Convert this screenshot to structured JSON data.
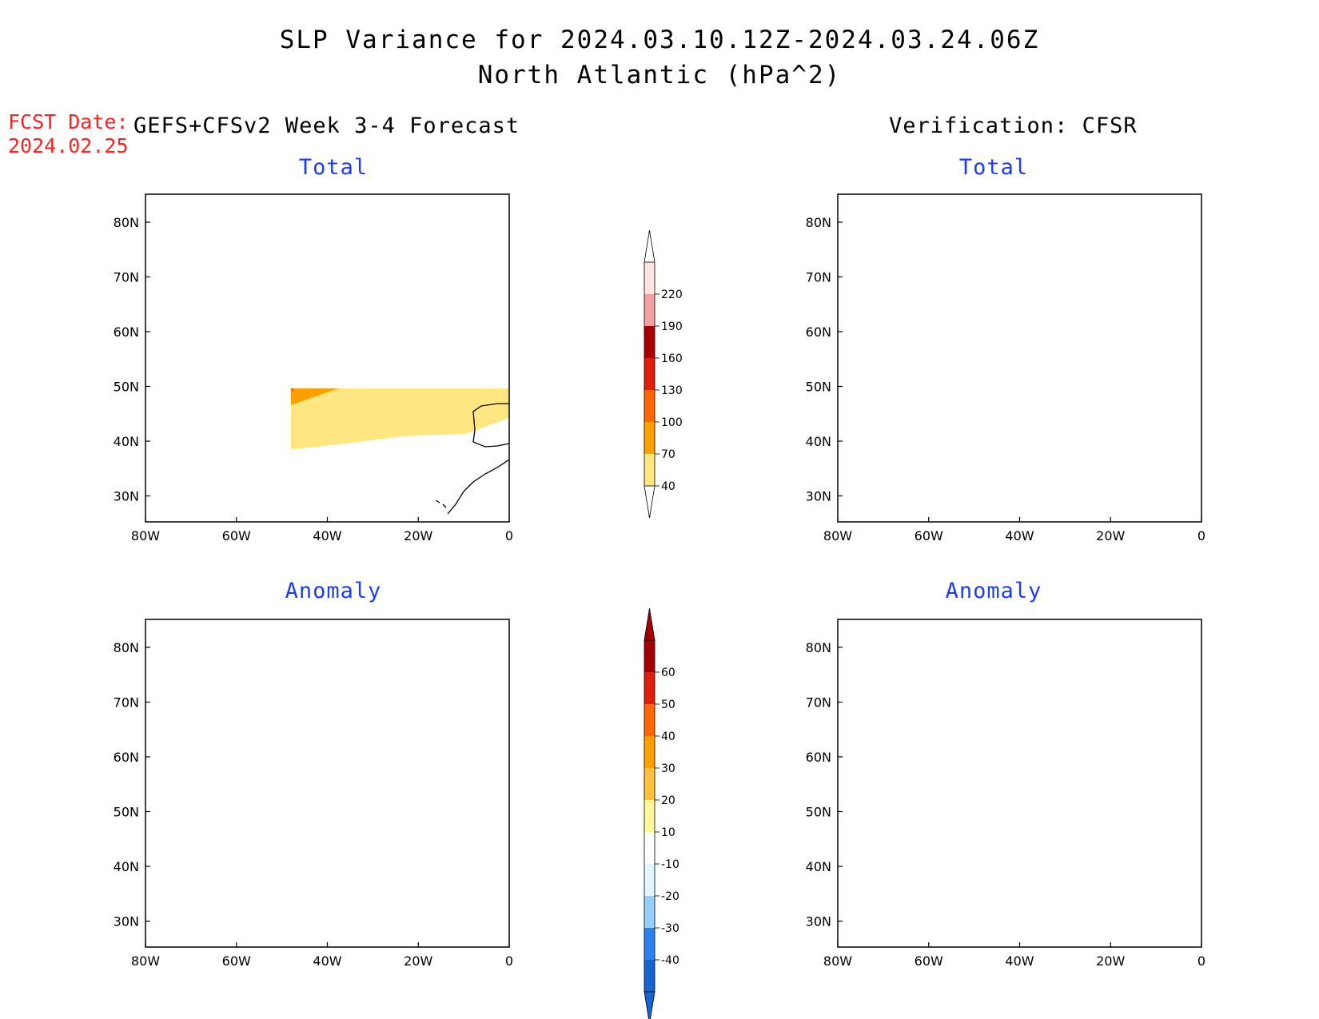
{
  "title": "SLP Variance for 2024.03.10.12Z-2024.03.24.06Z",
  "subtitle": "North Atlantic (hPa^2)",
  "fcst_date_label": "FCST Date:",
  "fcst_date_value": "2024.02.25",
  "left_column_title": "GEFS+CFSv2 Week 3-4 Forecast",
  "right_column_title": "Verification: CFSR",
  "panels": [
    {
      "title": "Total"
    },
    {
      "title": "Total"
    },
    {
      "title": "Anomaly"
    },
    {
      "title": "Anomaly"
    }
  ],
  "lon_ticks": [
    "80W",
    "60W",
    "40W",
    "20W",
    "0"
  ],
  "lat_ticks": [
    "80N",
    "70N",
    "60N",
    "50N",
    "40N",
    "30N"
  ],
  "total_colorbar": {
    "labels": [
      "220",
      "190",
      "160",
      "130",
      "100",
      "70",
      "40"
    ],
    "colors": [
      "#fde2e2",
      "#f2a0a2",
      "#a80000",
      "#dc1e0a",
      "#ff6600",
      "#ffa000",
      "#ffe680"
    ]
  },
  "anomaly_colorbar": {
    "labels": [
      "60",
      "50",
      "40",
      "30",
      "20",
      "10",
      "-10",
      "-20",
      "-30",
      "-40"
    ],
    "colors": [
      "#a50000",
      "#dc1e0a",
      "#ff6600",
      "#ffa000",
      "#ffc03c",
      "#fff59a",
      "#ffffff",
      "#e0f6fe",
      "#96d0fa",
      "#2a82f0",
      "#1464d2"
    ]
  }
}
